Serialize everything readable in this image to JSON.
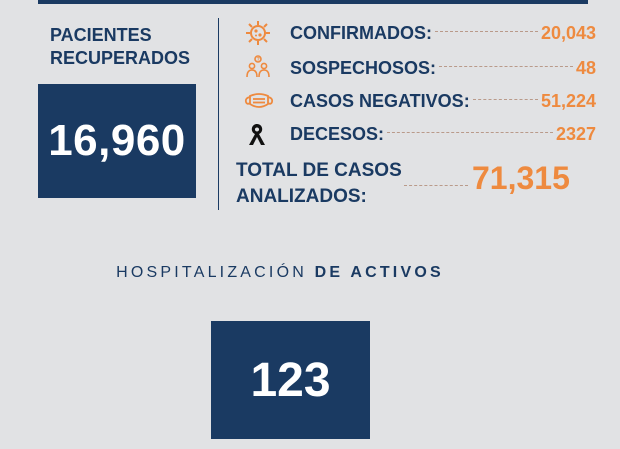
{
  "recovered": {
    "label_line1": "PACIENTES",
    "label_line2": "RECUPERADOS",
    "value": "16,960"
  },
  "stats": [
    {
      "icon": "virus-icon",
      "label": "CONFIRMADOS:",
      "value": "20,043"
    },
    {
      "icon": "suspect-people-icon",
      "label": "SOSPECHOSOS:",
      "value": "48"
    },
    {
      "icon": "face-mask-icon",
      "label": "CASOS NEGATIVOS:",
      "value": "51,224"
    },
    {
      "icon": "mourning-ribbon-icon",
      "label": "DECESOS:",
      "value": "2327"
    }
  ],
  "total": {
    "label_line1": "TOTAL DE CASOS",
    "label_line2": "ANALIZADOS:",
    "value": "71,315"
  },
  "hospitalization": {
    "title_light": "HOSPITALIZACIÓN",
    "title_bold": "DE ACTIVOS",
    "value": "123"
  },
  "colors": {
    "navy": "#1a3a62",
    "orange": "#ee8a3f",
    "background": "#e1e2e4"
  }
}
